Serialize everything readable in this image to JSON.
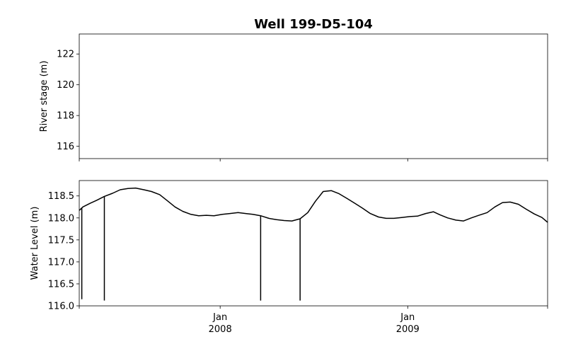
{
  "title": "Well 199-D5-104",
  "chart_data": [
    {
      "panel": "top",
      "type": "line",
      "title": "Well 199-D5-104",
      "xlabel": "",
      "ylabel": "River stage (m)",
      "xlim": [
        "2007-04-01",
        "2009-10-01"
      ],
      "ylim": [
        115.2,
        123.3
      ],
      "ytick_labels": [
        "116",
        "118",
        "120",
        "122"
      ],
      "xtick_labels": [],
      "series": [
        {
          "values": []
        }
      ]
    },
    {
      "panel": "bottom",
      "type": "line",
      "xlabel": "",
      "ylabel": "Water Level (m)",
      "xlim": [
        "2007-04-01",
        "2009-10-01"
      ],
      "ylim": [
        116.0,
        118.85
      ],
      "ytick_labels": [
        "116.0",
        "116.5",
        "117.0",
        "117.5",
        "118.0",
        "118.5"
      ],
      "xtick_labels": [
        {
          "date": "2008-01-01",
          "line1": "Jan",
          "line2": "2008"
        },
        {
          "date": "2009-01-01",
          "line1": "Jan",
          "line2": "2009"
        }
      ],
      "series": [
        {
          "color": "#000000",
          "x": [
            "2007-04-01",
            "2007-04-08",
            "2007-04-20",
            "2007-05-05",
            "2007-05-20",
            "2007-06-05",
            "2007-06-20",
            "2007-07-05",
            "2007-07-20",
            "2007-08-05",
            "2007-08-20",
            "2007-09-05",
            "2007-09-20",
            "2007-10-05",
            "2007-10-20",
            "2007-11-05",
            "2007-11-20",
            "2007-12-05",
            "2007-12-20",
            "2008-01-05",
            "2008-01-20",
            "2008-02-05",
            "2008-02-20",
            "2008-03-05",
            "2008-03-20",
            "2008-04-05",
            "2008-04-20",
            "2008-05-05",
            "2008-05-20",
            "2008-06-05",
            "2008-06-20",
            "2008-07-05",
            "2008-07-20",
            "2008-08-05",
            "2008-08-20",
            "2008-09-05",
            "2008-09-20",
            "2008-10-05",
            "2008-10-20",
            "2008-11-05",
            "2008-11-20",
            "2008-12-05",
            "2008-12-20",
            "2009-01-05",
            "2009-01-20",
            "2009-02-05",
            "2009-02-20",
            "2009-03-05",
            "2009-03-20",
            "2009-04-05",
            "2009-04-20",
            "2009-05-05",
            "2009-05-20",
            "2009-06-05",
            "2009-06-20",
            "2009-07-05",
            "2009-07-20",
            "2009-08-05",
            "2009-08-20",
            "2009-09-05",
            "2009-09-20",
            "2009-10-01"
          ],
          "y": [
            118.17,
            118.25,
            118.32,
            118.4,
            118.49,
            118.56,
            118.64,
            118.67,
            118.68,
            118.64,
            118.6,
            118.53,
            118.39,
            118.25,
            118.15,
            118.08,
            118.05,
            118.06,
            118.05,
            118.08,
            118.1,
            118.12,
            118.1,
            118.08,
            118.05,
            117.99,
            117.96,
            117.94,
            117.93,
            117.98,
            118.12,
            118.38,
            118.6,
            118.62,
            118.55,
            118.44,
            118.33,
            118.22,
            118.1,
            118.02,
            117.99,
            117.99,
            118.01,
            118.03,
            118.04,
            118.1,
            118.14,
            118.07,
            118.0,
            117.95,
            117.93,
            118.0,
            118.06,
            118.12,
            118.25,
            118.35,
            118.36,
            118.31,
            118.2,
            118.09,
            118.01,
            117.9
          ]
        }
      ],
      "spikes": [
        {
          "x": "2007-04-06",
          "y": 116.15
        },
        {
          "x": "2007-05-20",
          "y": 116.12
        },
        {
          "x": "2008-03-20",
          "y": 116.12
        },
        {
          "x": "2008-06-05",
          "y": 116.12
        }
      ]
    }
  ]
}
